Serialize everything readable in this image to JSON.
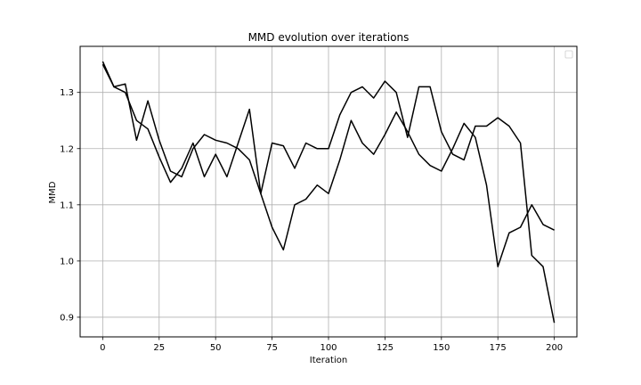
{
  "chart_data": {
    "type": "line",
    "title": "MMD evolution over iterations",
    "xlabel": "Iteration",
    "ylabel": "MMD",
    "xlim": [
      -10,
      210
    ],
    "ylim": [
      0.865,
      1.382
    ],
    "xticks": [
      0,
      25,
      50,
      75,
      100,
      125,
      150,
      175,
      200
    ],
    "yticks": [
      0.9,
      1.0,
      1.1,
      1.2,
      1.3
    ],
    "ytick_labels": [
      "0.9",
      "1.0",
      "1.1",
      "1.2",
      "1.3"
    ],
    "grid": true,
    "legend": "top-right (empty)",
    "line_color": "#000000",
    "series": [
      {
        "x": [
          0,
          5,
          10,
          15,
          20,
          25,
          30,
          35,
          40,
          45,
          50,
          55,
          60,
          65,
          70,
          75,
          80,
          85,
          90,
          95,
          100,
          105,
          110,
          115,
          120,
          125,
          130,
          135,
          140,
          145,
          150,
          155,
          160,
          165,
          170,
          175,
          180,
          185,
          190,
          195,
          200
        ],
        "values": [
          1.355,
          1.31,
          1.3,
          1.25,
          1.235,
          1.185,
          1.14,
          1.165,
          1.21,
          1.15,
          1.19,
          1.15,
          1.21,
          1.27,
          1.12,
          1.06,
          1.02,
          1.1,
          1.11,
          1.135,
          1.12,
          1.18,
          1.25,
          1.21,
          1.19,
          1.225,
          1.265,
          1.23,
          1.19,
          1.17,
          1.16,
          1.2,
          1.245,
          1.22,
          1.135,
          0.99,
          1.05,
          1.06,
          1.1,
          1.065,
          1.055
        ]
      },
      {
        "x": [
          0,
          5,
          10,
          15,
          20,
          25,
          30,
          35,
          40,
          45,
          50,
          55,
          60,
          65,
          70,
          75,
          80,
          85,
          90,
          95,
          100,
          105,
          110,
          115,
          120,
          125,
          130,
          135,
          140,
          145,
          150,
          155,
          160,
          165,
          170,
          175,
          180,
          185,
          190,
          195,
          200
        ],
        "values": [
          1.35,
          1.31,
          1.315,
          1.215,
          1.285,
          1.215,
          1.16,
          1.15,
          1.2,
          1.225,
          1.215,
          1.21,
          1.2,
          1.18,
          1.12,
          1.21,
          1.205,
          1.165,
          1.21,
          1.2,
          1.2,
          1.26,
          1.3,
          1.31,
          1.29,
          1.32,
          1.3,
          1.22,
          1.31,
          1.31,
          1.23,
          1.19,
          1.18,
          1.24,
          1.24,
          1.255,
          1.24,
          1.21,
          1.01,
          0.99,
          0.89
        ]
      }
    ]
  }
}
